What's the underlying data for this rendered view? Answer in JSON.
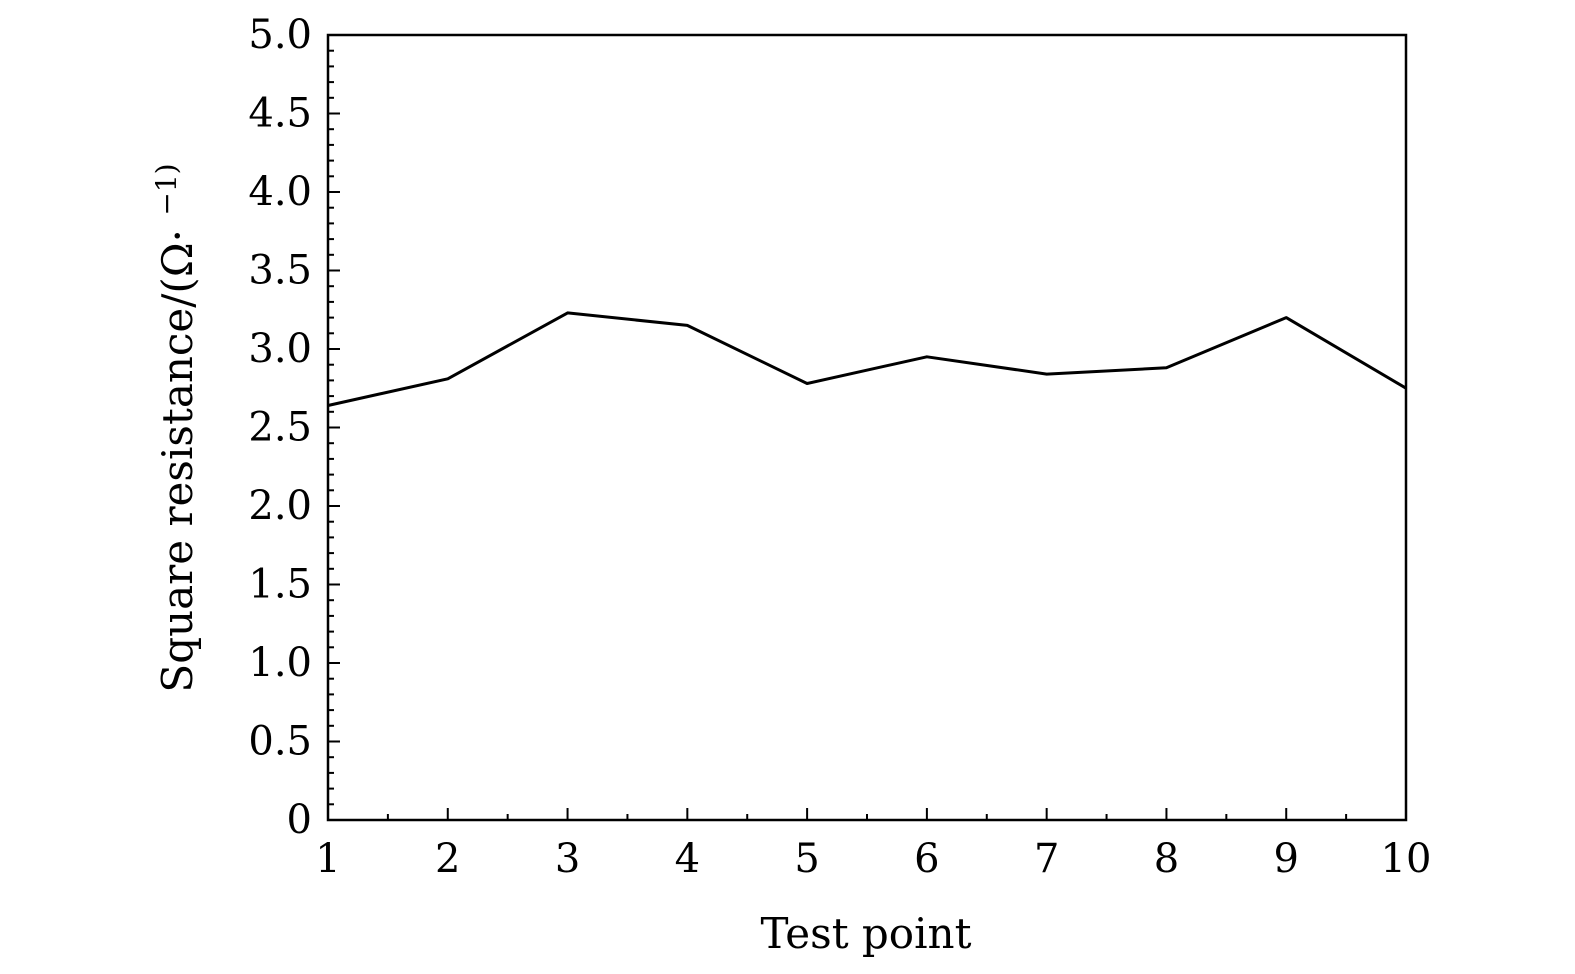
{
  "chart_data": {
    "type": "line",
    "title": "",
    "xlabel": "Test point",
    "ylabel": "Square resistance/(Ω· ",
    "ylabel_superscript": "−1)",
    "xlim": [
      1,
      10
    ],
    "ylim": [
      0,
      5.0
    ],
    "x_ticks": [
      "1",
      "2",
      "3",
      "4",
      "5",
      "6",
      "7",
      "8",
      "9",
      "10"
    ],
    "y_ticks": [
      "0",
      "0.5",
      "1.0",
      "1.5",
      "2.0",
      "2.5",
      "3.0",
      "3.5",
      "4.0",
      "4.5",
      "5.0"
    ],
    "grid": false,
    "legend": "none",
    "series": [
      {
        "x": [
          1,
          2,
          3,
          4,
          5,
          6,
          7,
          8,
          9,
          10
        ],
        "values": [
          2.64,
          2.81,
          3.23,
          3.15,
          2.78,
          2.95,
          2.84,
          2.88,
          3.2,
          2.75
        ],
        "color": "#000000"
      }
    ]
  }
}
